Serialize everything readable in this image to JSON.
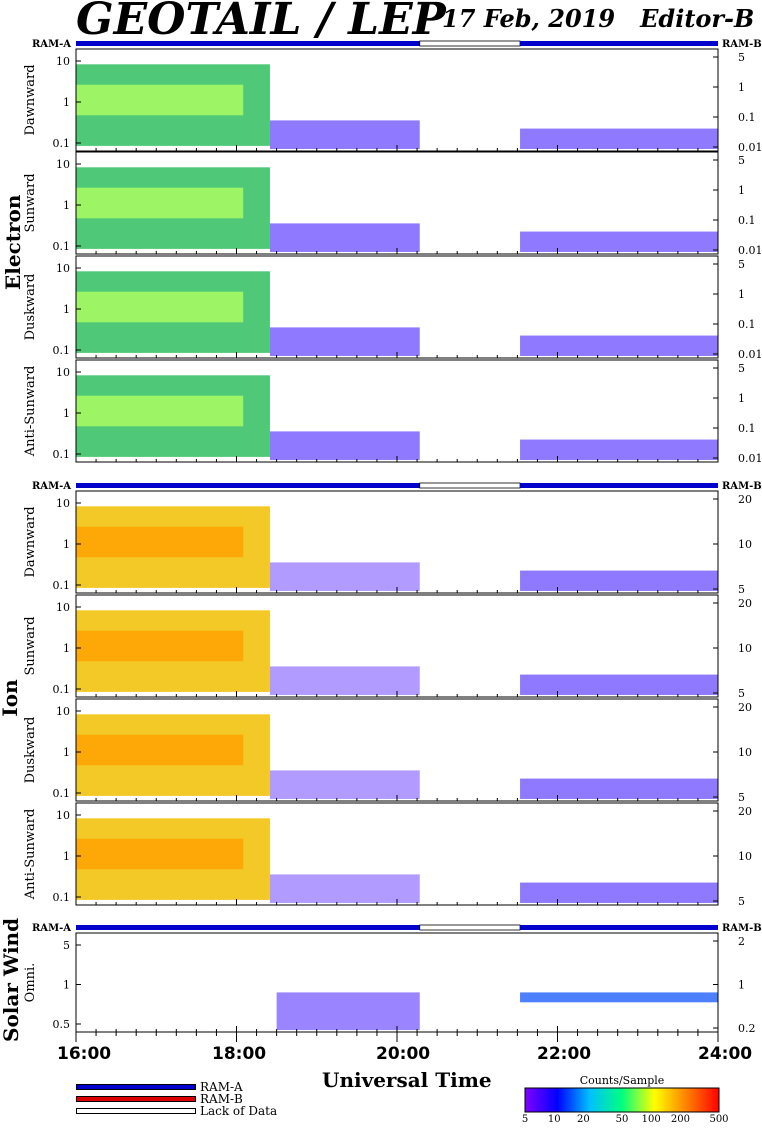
{
  "header": {
    "title": "GEOTAIL / LEP",
    "date": "17 Feb, 2019",
    "editor": "Editor-B"
  },
  "ram_labels": {
    "a": "RAM-A",
    "b": "RAM-B"
  },
  "groups": {
    "electron": "Electron",
    "ion": "Ion",
    "solar_wind": "Solar Wind"
  },
  "chart_data": {
    "type": "heatmap",
    "xlabel": "Universal Time",
    "x_ticks": [
      "16:00",
      "18:00",
      "20:00",
      "22:00",
      "24:00"
    ],
    "xlim": [
      "16:00",
      "24:00"
    ],
    "data_gap": [
      "20:17",
      "21:32"
    ],
    "panels": [
      {
        "group": "Electron",
        "name": "Dawnward",
        "left_ticks": [
          "10",
          "1",
          "0.1"
        ],
        "right_ticks": [
          "5",
          "1",
          "0.1",
          "0.01"
        ]
      },
      {
        "group": "Electron",
        "name": "Sunward",
        "left_ticks": [
          "10",
          "1",
          "0.1"
        ],
        "right_ticks": [
          "5",
          "1",
          "0.1",
          "0.01"
        ]
      },
      {
        "group": "Electron",
        "name": "Duskward",
        "left_ticks": [
          "10",
          "1",
          "0.1"
        ],
        "right_ticks": [
          "5",
          "1",
          "0.1",
          "0.01"
        ]
      },
      {
        "group": "Electron",
        "name": "Anti-Sunward",
        "left_ticks": [
          "10",
          "1",
          "0.1"
        ],
        "right_ticks": [
          "5",
          "1",
          "0.1",
          "0.01"
        ]
      },
      {
        "group": "Ion",
        "name": "Dawnward",
        "left_ticks": [
          "10",
          "1",
          "0.1"
        ],
        "right_ticks": [
          "20",
          "10",
          "5"
        ]
      },
      {
        "group": "Ion",
        "name": "Sunward",
        "left_ticks": [
          "10",
          "1",
          "0.1"
        ],
        "right_ticks": [
          "20",
          "10",
          "5"
        ]
      },
      {
        "group": "Ion",
        "name": "Duskward",
        "left_ticks": [
          "10",
          "1",
          "0.1"
        ],
        "right_ticks": [
          "20",
          "10",
          "5"
        ]
      },
      {
        "group": "Ion",
        "name": "Anti-Sunward",
        "left_ticks": [
          "10",
          "1",
          "0.1"
        ],
        "right_ticks": [
          "20",
          "10",
          "5"
        ]
      },
      {
        "group": "Solar Wind",
        "name": "Omni.",
        "left_ticks": [
          "5",
          "1",
          "0.5"
        ],
        "right_ticks": [
          "2",
          "1",
          "0.2"
        ]
      }
    ],
    "legend": [
      {
        "label": "RAM-A",
        "color": "#0000cc"
      },
      {
        "label": "RAM-B",
        "color": "#dd0000"
      },
      {
        "label": "Lack of Data",
        "color": "#ffffff"
      }
    ],
    "colorbar": {
      "title": "Counts/Sample",
      "ticks": [
        "5",
        "10",
        "20",
        "50",
        "100",
        "200",
        "500"
      ],
      "colors": [
        "#8000ff",
        "#0000ff",
        "#00c0ff",
        "#00ff80",
        "#ffff00",
        "#ff8000",
        "#ff0000"
      ]
    }
  }
}
